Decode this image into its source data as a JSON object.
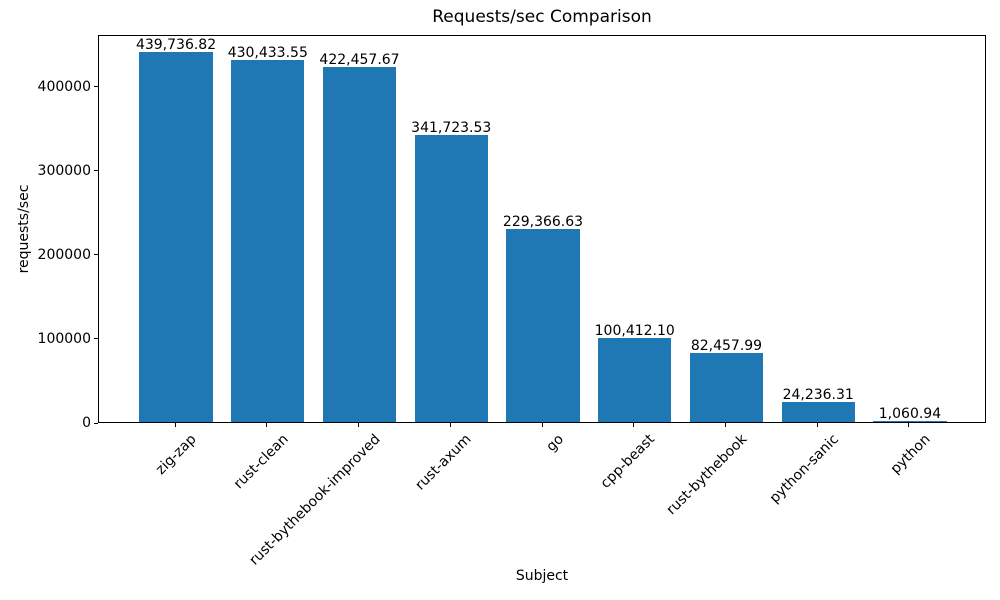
{
  "chart_data": {
    "type": "bar",
    "title": "Requests/sec Comparison",
    "xlabel": "Subject",
    "ylabel": "requests/sec",
    "categories": [
      "zig-zap",
      "rust-clean",
      "rust-bythebook-improved",
      "rust-axum",
      "go",
      "cpp-beast",
      "rust-bythebook",
      "python-sanic",
      "python"
    ],
    "values": [
      439736.82,
      430433.55,
      422457.67,
      341723.53,
      229366.63,
      100412.1,
      82457.99,
      24236.31,
      1060.94
    ],
    "value_labels": [
      "439,736.82",
      "430,433.55",
      "422,457.67",
      "341,723.53",
      "229,366.63",
      "100,412.10",
      "82,457.99",
      "24,236.31",
      "1,060.94"
    ],
    "ylim": [
      0,
      461723.66
    ],
    "yticks": [
      0,
      100000,
      200000,
      300000,
      400000
    ],
    "ytick_labels": [
      "0",
      "100000",
      "200000",
      "300000",
      "400000"
    ],
    "bar_color": "#1f77b4",
    "text_color": "#000000",
    "grid": false,
    "legend": null,
    "xtick_rotation_deg": 45
  }
}
